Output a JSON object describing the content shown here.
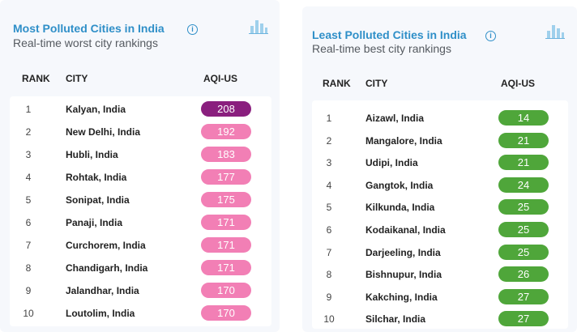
{
  "panels": [
    {
      "id": "most",
      "title": "Most Polluted Cities in India",
      "subtitle": "Real-time worst city rankings",
      "icons": {
        "info": "info-icon",
        "chart": "bar-chart-icon"
      },
      "columns": {
        "rank": "RANK",
        "city": "CITY",
        "aqi": "AQI-US"
      },
      "rows": [
        {
          "rank": "1",
          "city": "Kalyan, India",
          "aqi": "208",
          "color": "#8a1f7e"
        },
        {
          "rank": "2",
          "city": "New Delhi, India",
          "aqi": "192",
          "color": "#f27fb5"
        },
        {
          "rank": "3",
          "city": "Hubli, India",
          "aqi": "183",
          "color": "#f27fb5"
        },
        {
          "rank": "4",
          "city": "Rohtak, India",
          "aqi": "177",
          "color": "#f27fb5"
        },
        {
          "rank": "5",
          "city": "Sonipat, India",
          "aqi": "175",
          "color": "#f27fb5"
        },
        {
          "rank": "6",
          "city": "Panaji, India",
          "aqi": "171",
          "color": "#f27fb5"
        },
        {
          "rank": "7",
          "city": "Curchorem, India",
          "aqi": "171",
          "color": "#f27fb5"
        },
        {
          "rank": "8",
          "city": "Chandigarh, India",
          "aqi": "171",
          "color": "#f27fb5"
        },
        {
          "rank": "9",
          "city": "Jalandhar, India",
          "aqi": "170",
          "color": "#f27fb5"
        },
        {
          "rank": "10",
          "city": "Loutolim, India",
          "aqi": "170",
          "color": "#f27fb5"
        }
      ]
    },
    {
      "id": "least",
      "title": "Least Polluted Cities in India",
      "subtitle": "Real-time best city rankings",
      "icons": {
        "info": "info-icon",
        "chart": "bar-chart-icon"
      },
      "columns": {
        "rank": "RANK",
        "city": "CITY",
        "aqi": "AQI-US"
      },
      "rows": [
        {
          "rank": "1",
          "city": "Aizawl, India",
          "aqi": "14",
          "color": "#4fa63a"
        },
        {
          "rank": "2",
          "city": "Mangalore, India",
          "aqi": "21",
          "color": "#4fa63a"
        },
        {
          "rank": "3",
          "city": "Udipi, India",
          "aqi": "21",
          "color": "#4fa63a"
        },
        {
          "rank": "4",
          "city": "Gangtok, India",
          "aqi": "24",
          "color": "#4fa63a"
        },
        {
          "rank": "5",
          "city": "Kilkunda, India",
          "aqi": "25",
          "color": "#4fa63a"
        },
        {
          "rank": "6",
          "city": "Kodaikanal, India",
          "aqi": "25",
          "color": "#4fa63a"
        },
        {
          "rank": "7",
          "city": "Darjeeling, India",
          "aqi": "25",
          "color": "#4fa63a"
        },
        {
          "rank": "8",
          "city": "Bishnupur, India",
          "aqi": "26",
          "color": "#4fa63a"
        },
        {
          "rank": "9",
          "city": "Kakching, India",
          "aqi": "27",
          "color": "#4fa63a"
        },
        {
          "rank": "10",
          "city": "Silchar, India",
          "aqi": "27",
          "color": "#4fa63a"
        }
      ]
    }
  ]
}
